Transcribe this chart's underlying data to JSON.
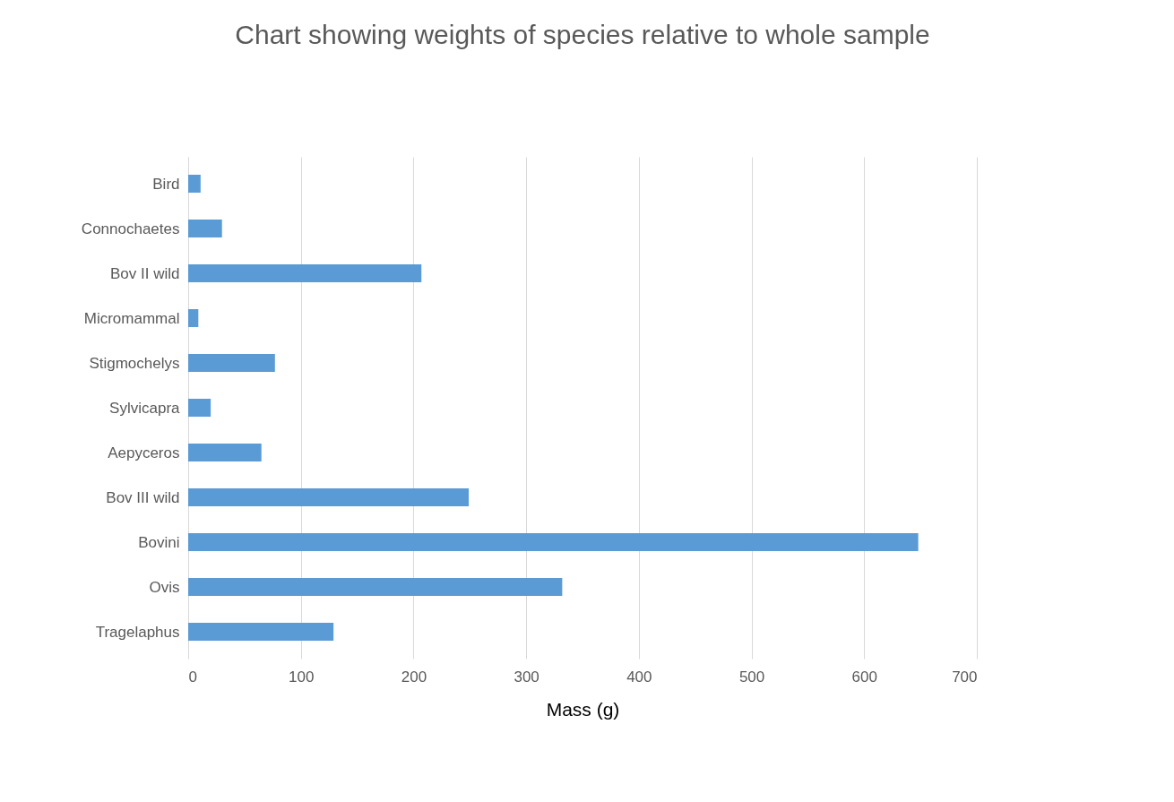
{
  "chart_data": {
    "type": "bar",
    "orientation": "horizontal",
    "title": "Chart showing weights of species relative to whole sample",
    "xlabel": "Mass (g)",
    "categories": [
      "Bird",
      "Connochaetes",
      "Bov II wild",
      "Micromammal",
      "Stigmochelys",
      "Sylvicapra",
      "Aepyceros",
      "Bov III wild",
      "Bovini",
      "Ovis",
      "Tragelaphus"
    ],
    "values": [
      11,
      30,
      207,
      9,
      77,
      20,
      65,
      249,
      648,
      332,
      129
    ],
    "color": "#5b9bd5",
    "xlim": [
      0,
      700
    ],
    "xticks": [
      0,
      100,
      200,
      300,
      400,
      500,
      600,
      700
    ],
    "grid": "x"
  }
}
